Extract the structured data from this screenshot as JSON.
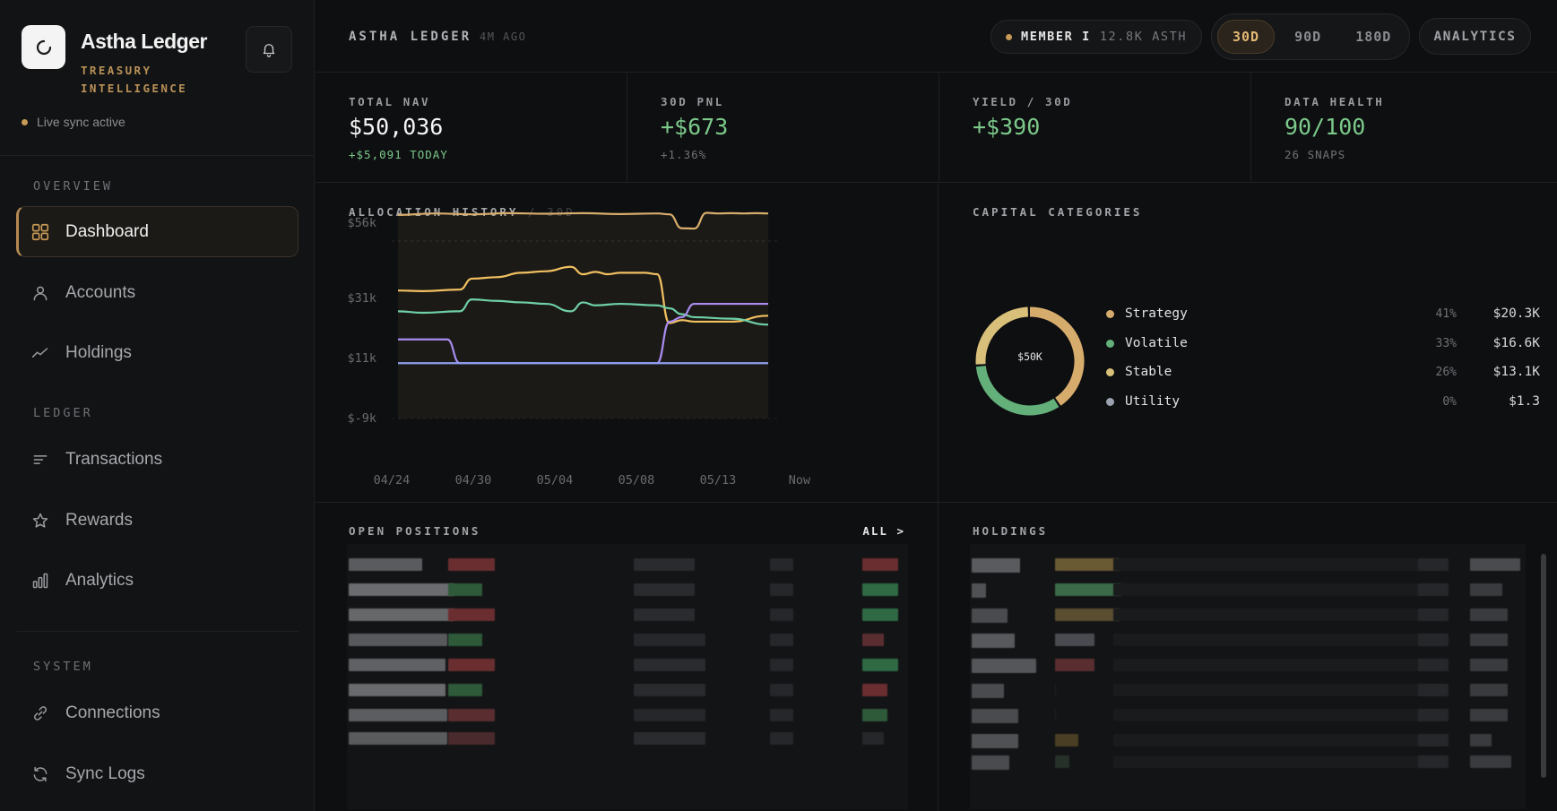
{
  "sidebar": {
    "brand_name": "Astha Ledger",
    "brand_sub": "TREASURY INTELLIGENCE",
    "status": "Live sync active",
    "sections": {
      "overview": "OVERVIEW",
      "ledger": "LEDGER",
      "system": "SYSTEM"
    },
    "items": [
      {
        "label": "Dashboard",
        "icon": "grid-icon",
        "active": true
      },
      {
        "label": "Accounts",
        "icon": "user-icon"
      },
      {
        "label": "Holdings",
        "icon": "trend-icon"
      },
      {
        "label": "Transactions",
        "icon": "list-icon"
      },
      {
        "label": "Rewards",
        "icon": "star-icon"
      },
      {
        "label": "Analytics",
        "icon": "bar-chart-icon"
      },
      {
        "label": "Connections",
        "icon": "link-icon"
      },
      {
        "label": "Sync Logs",
        "icon": "refresh-icon"
      }
    ]
  },
  "header": {
    "title": "ASTHA LEDGER",
    "updated": "4M AGO",
    "member_label": "MEMBER I",
    "member_value": "12.8K ASTH",
    "ranges": [
      "30D",
      "90D",
      "180D"
    ],
    "active_range": "30D",
    "analytics_label": "ANALYTICS"
  },
  "stats": [
    {
      "label": "TOTAL NAV",
      "value": "$50,036",
      "sub": "+$5,091 TODAY"
    },
    {
      "label": "30D PNL",
      "value": "+$673",
      "sub": "+1.36%"
    },
    {
      "label": "YIELD / 30D",
      "value": "+$390",
      "sub": ""
    },
    {
      "label": "DATA HEALTH",
      "value": "90/100",
      "sub": "26 SNAPS"
    }
  ],
  "allocation": {
    "title": "ALLOCATION HISTORY",
    "range": "30D"
  },
  "capital": {
    "title": "CAPITAL CATEGORIES",
    "center_label": "$50K",
    "items": [
      {
        "name": "Strategy",
        "pct": "41%",
        "value": "$20.3K",
        "color": "#d6ac6c"
      },
      {
        "name": "Volatile",
        "pct": "33%",
        "value": "$16.6K",
        "color": "#63b07a"
      },
      {
        "name": "Stable",
        "pct": "26%",
        "value": "$13.1K",
        "color": "#d9c07a"
      },
      {
        "name": "Utility",
        "pct": "0%",
        "value": "$1.3",
        "color": "#9aa3b0"
      }
    ]
  },
  "positions": {
    "title": "OPEN POSITIONS",
    "all_label": "ALL >"
  },
  "holdings": {
    "title": "HOLDINGS"
  },
  "chart_data": {
    "type": "line",
    "title": "ALLOCATION HISTORY",
    "x_ticks": [
      "04/24",
      "04/30",
      "05/04",
      "05/08",
      "05/13",
      "Now"
    ],
    "y_ticks": [
      "$56k",
      "$31k",
      "$11k",
      "$-9k"
    ],
    "ylim": [
      -9000,
      56000
    ],
    "grid": false,
    "colors": {
      "total": "#d9ae6c",
      "strategy": "#f0c060",
      "volatile": "#6fd0a6",
      "utility": "#a98cf0",
      "stable": "#8f9ff0"
    },
    "series": [
      {
        "key": "total",
        "x": [
          0,
          3,
          6,
          9,
          12,
          15,
          18,
          21,
          22,
          23,
          24,
          25,
          26,
          27,
          28,
          29,
          30
        ],
        "values": [
          50000,
          50500,
          50200,
          50600,
          50400,
          50600,
          50300,
          50500,
          50200,
          45500,
          45400,
          50700,
          50500,
          50600,
          50500,
          50600,
          50500
        ]
      },
      {
        "key": "strategy",
        "x": [
          0,
          2,
          5,
          6,
          8,
          10,
          12,
          14,
          15,
          16,
          17,
          18,
          20,
          21,
          22,
          23,
          24,
          27,
          30
        ],
        "values": [
          24500,
          24300,
          24800,
          28500,
          29000,
          30500,
          31000,
          32500,
          30000,
          30800,
          30000,
          30500,
          30500,
          30000,
          13500,
          14500,
          14000,
          14000,
          16000
        ]
      },
      {
        "key": "volatile",
        "x": [
          0,
          2,
          5,
          6,
          8,
          10,
          12,
          14,
          15,
          16,
          18,
          21,
          22,
          23,
          24,
          27,
          30
        ],
        "values": [
          17500,
          17000,
          17500,
          21500,
          21000,
          20500,
          20000,
          17500,
          20500,
          19500,
          20000,
          19500,
          18500,
          16500,
          15500,
          15000,
          13000
        ]
      },
      {
        "key": "utility",
        "x": [
          0,
          3,
          4,
          5,
          20,
          21,
          22,
          23,
          24,
          30
        ],
        "values": [
          8000,
          8000,
          8000,
          0,
          0,
          0,
          14000,
          15500,
          20000,
          20000
        ]
      },
      {
        "key": "stable",
        "x": [
          0,
          30
        ],
        "values": [
          0,
          0
        ]
      }
    ]
  }
}
